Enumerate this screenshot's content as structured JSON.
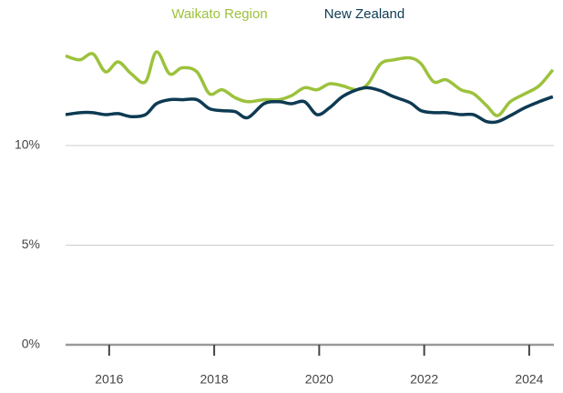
{
  "chart_data": {
    "type": "line",
    "x": [
      2015.17,
      2015.44,
      2015.69,
      2015.93,
      2016.17,
      2016.42,
      2016.69,
      2016.9,
      2017.15,
      2017.39,
      2017.67,
      2017.91,
      2018.15,
      2018.4,
      2018.64,
      2018.95,
      2019.23,
      2019.47,
      2019.72,
      2019.96,
      2020.2,
      2020.44,
      2020.72,
      2020.93,
      2021.17,
      2021.42,
      2021.73,
      2021.94,
      2022.18,
      2022.42,
      2022.7,
      2022.94,
      2023.19,
      2023.4,
      2023.64,
      2023.92,
      2024.19,
      2024.45
    ],
    "series": [
      {
        "name": "Waikato Region",
        "color": "#9cc23c",
        "values": [
          14.5,
          14.3,
          14.6,
          13.7,
          14.2,
          13.6,
          13.2,
          14.7,
          13.6,
          13.9,
          13.7,
          12.6,
          12.8,
          12.4,
          12.2,
          12.3,
          12.3,
          12.5,
          12.9,
          12.8,
          13.1,
          13.0,
          12.8,
          13.1,
          14.1,
          14.3,
          14.4,
          14.1,
          13.2,
          13.3,
          12.8,
          12.6,
          12.0,
          11.5,
          12.2,
          12.6,
          13.0,
          13.8
        ]
      },
      {
        "name": "New Zealand",
        "color": "#0e3a53",
        "values": [
          11.55,
          11.65,
          11.65,
          11.55,
          11.6,
          11.45,
          11.55,
          12.1,
          12.3,
          12.3,
          12.3,
          11.85,
          11.75,
          11.7,
          11.4,
          12.1,
          12.2,
          12.1,
          12.2,
          11.55,
          11.9,
          12.45,
          12.8,
          12.9,
          12.75,
          12.45,
          12.15,
          11.75,
          11.65,
          11.65,
          11.55,
          11.55,
          11.2,
          11.2,
          11.5,
          11.9,
          12.2,
          12.45
        ]
      }
    ],
    "xlim": [
      2015.17,
      2024.47
    ],
    "xticks": [
      2016,
      2018,
      2020,
      2022,
      2024
    ],
    "ylim": [
      0,
      15.5
    ],
    "yticks": [
      {
        "value": 0,
        "label": "0%"
      },
      {
        "value": 5,
        "label": "5%"
      },
      {
        "value": 10,
        "label": "10%"
      }
    ],
    "grid": true
  }
}
